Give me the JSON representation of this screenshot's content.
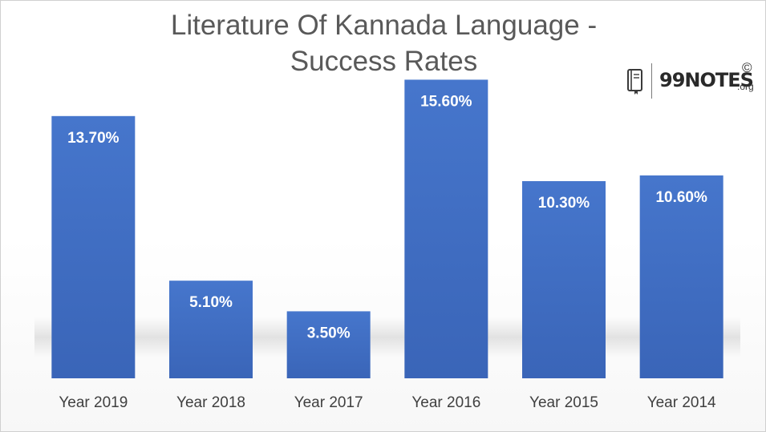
{
  "chart_data": {
    "type": "bar",
    "title": "Literature Of Kannada Language - Success Rates",
    "title_lines": [
      "Literature Of Kannada Language -",
      "Success Rates"
    ],
    "categories": [
      "Year 2019",
      "Year 2018",
      "Year 2017",
      "Year 2016",
      "Year 2015",
      "Year 2014"
    ],
    "values": [
      13.7,
      5.1,
      3.5,
      15.6,
      10.3,
      10.6
    ],
    "value_labels": [
      "13.70%",
      "5.10%",
      "3.50%",
      "15.60%",
      "10.30%",
      "10.60%"
    ],
    "ylim": [
      0,
      17
    ],
    "grid": false,
    "legend": "none",
    "bar_color": "#4472C4"
  },
  "logo": {
    "name": "99NOTES",
    "tld": ".org",
    "copyright": "©",
    "icon": "book-icon"
  }
}
